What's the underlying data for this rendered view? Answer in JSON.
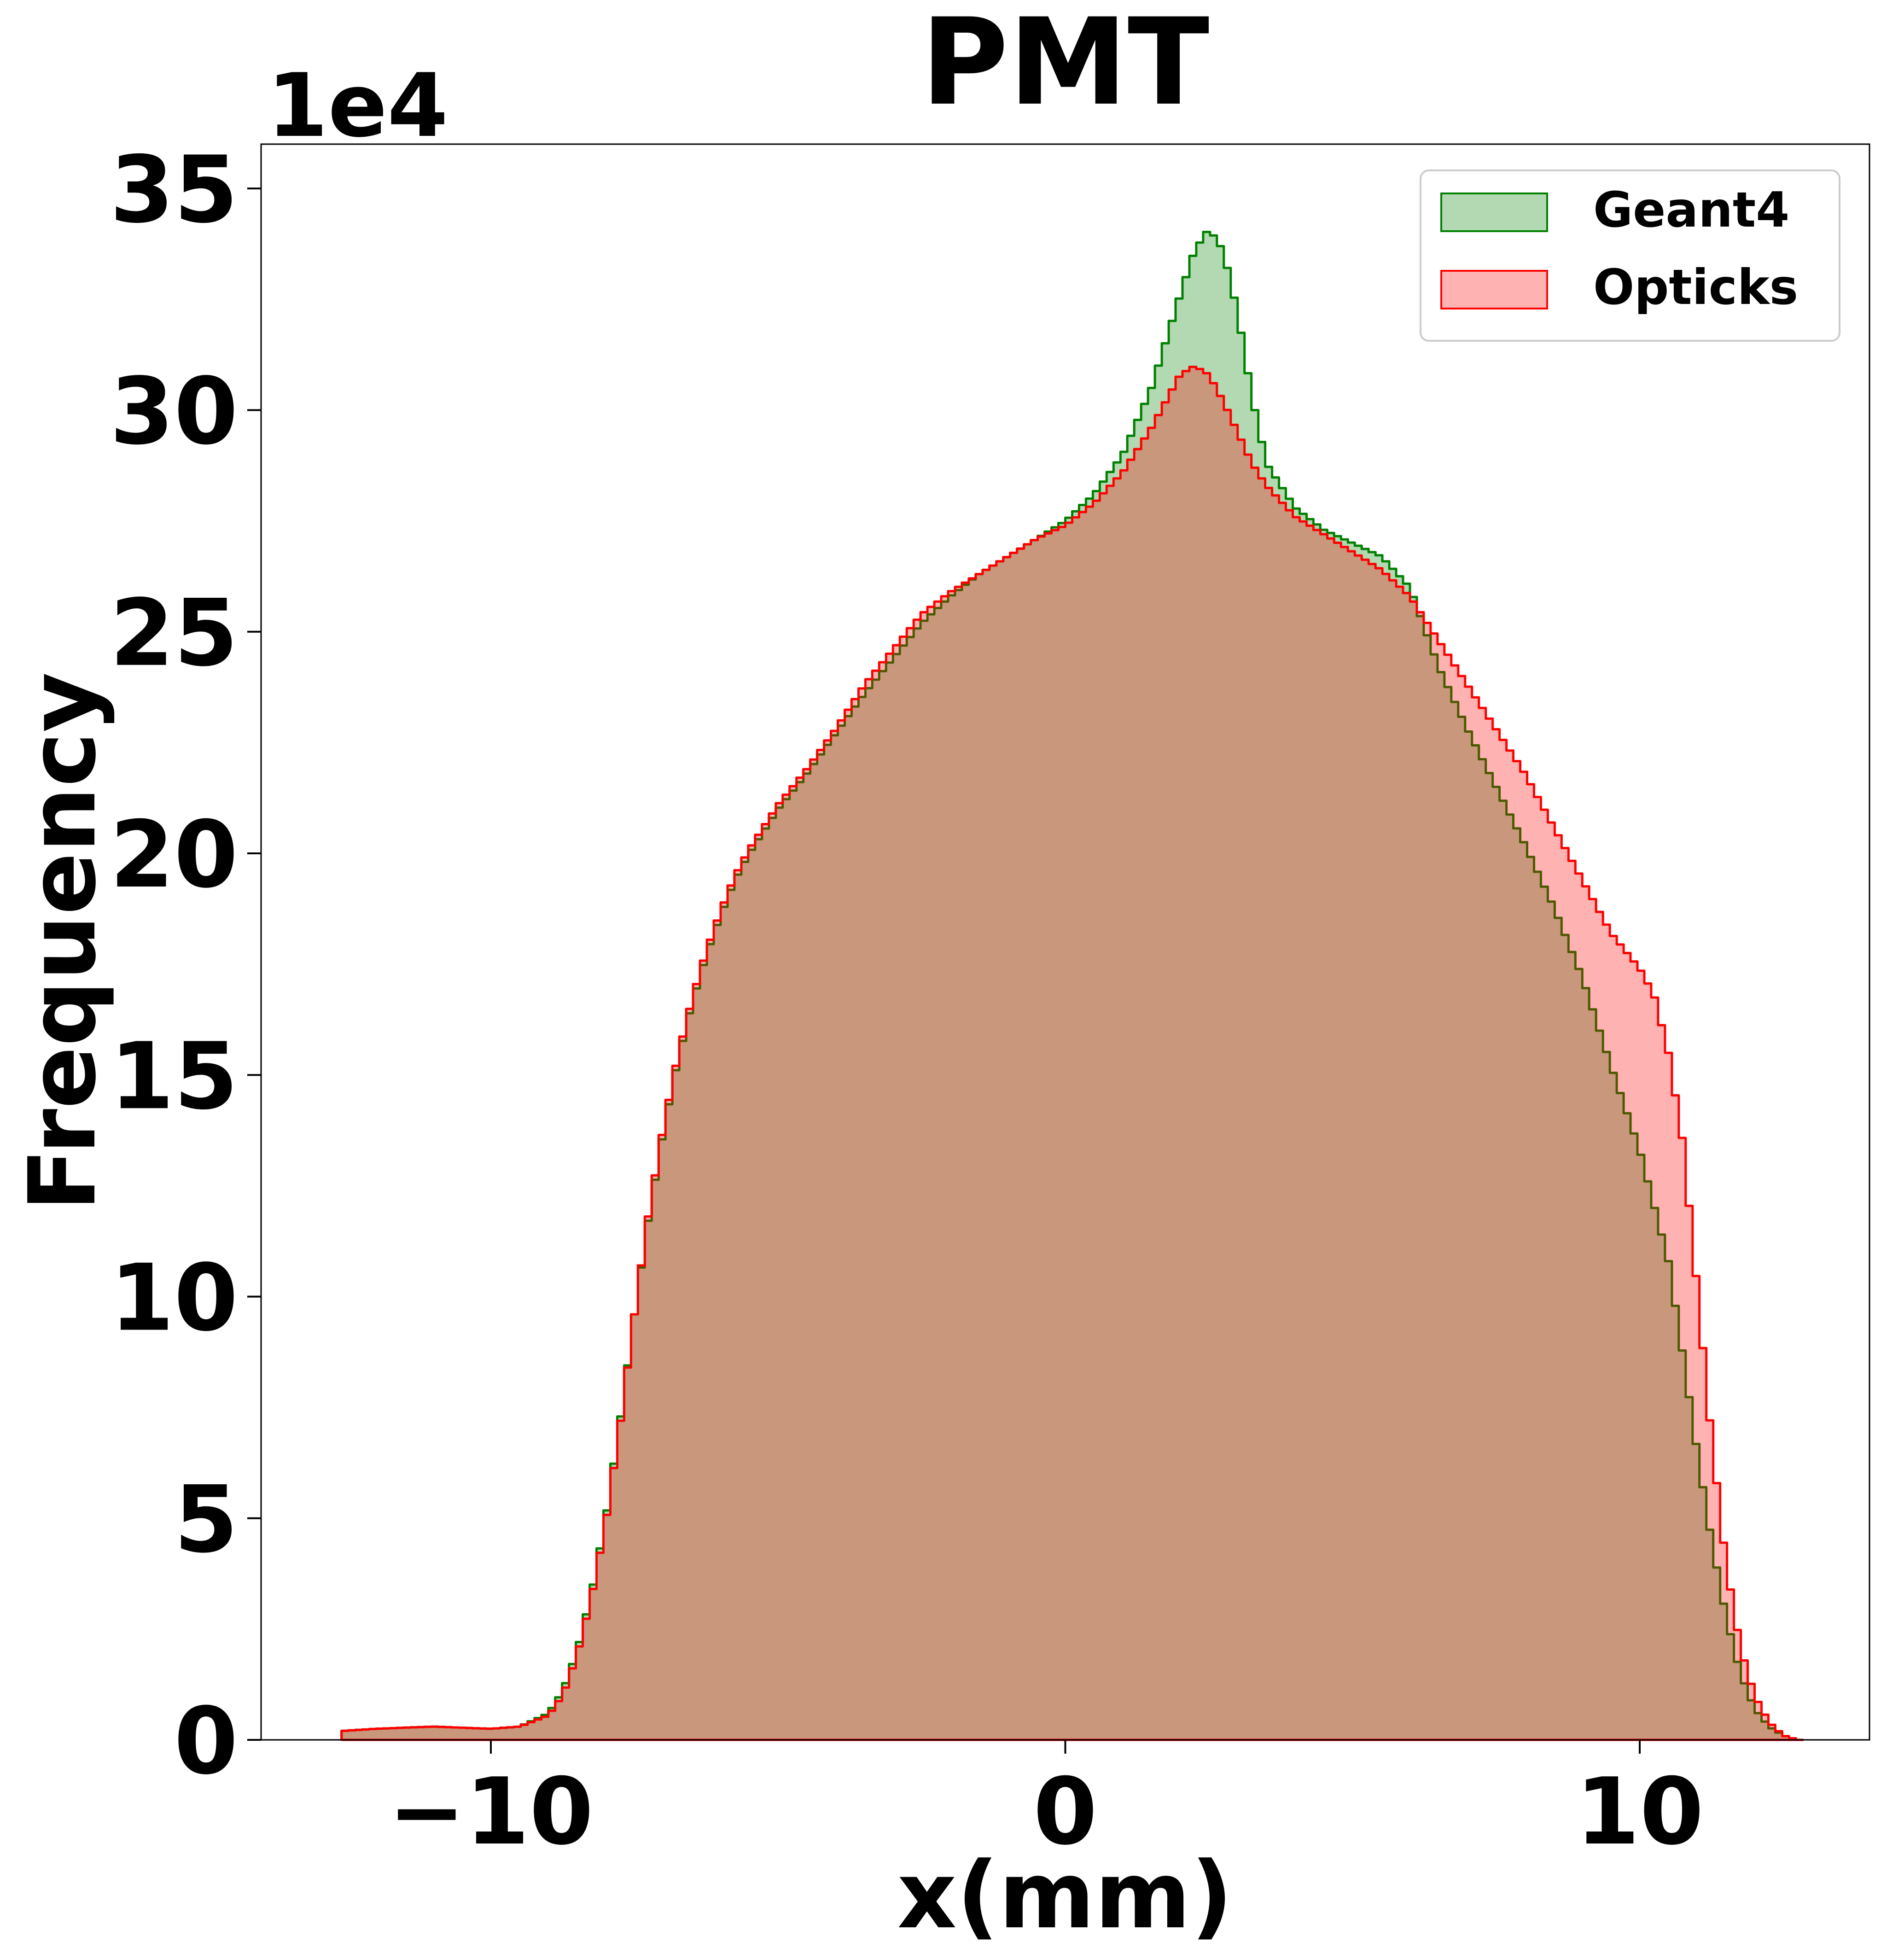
{
  "chart_data": {
    "type": "area",
    "title": "PMT",
    "xlabel": "x(mm)",
    "ylabel": "Frequency",
    "y_offset_label": "1e4",
    "xlim": [
      -14.0,
      14.0
    ],
    "ylim": [
      0,
      36
    ],
    "x_ticks": [
      -10,
      0,
      10
    ],
    "x_tick_labels": [
      "−10",
      "0",
      "10"
    ],
    "y_ticks": [
      0,
      5,
      10,
      15,
      20,
      25,
      30,
      35
    ],
    "y_tick_labels": [
      "0",
      "5",
      "10",
      "15",
      "20",
      "25",
      "30",
      "35"
    ],
    "grid": false,
    "legend_position": "top-right",
    "series": [
      {
        "name": "Geant4",
        "color": "#008000",
        "x": [
          -12.6,
          -12.0,
          -11.0,
          -10.0,
          -9.5,
          -9.0,
          -8.75,
          -8.5,
          -8.25,
          -8.0,
          -7.75,
          -7.5,
          -7.25,
          -7.0,
          -6.75,
          -6.5,
          -6.25,
          -6.0,
          -5.75,
          -5.5,
          -5.0,
          -4.5,
          -4.0,
          -3.5,
          -3.0,
          -2.5,
          -2.0,
          -1.5,
          -1.0,
          -0.5,
          0.0,
          0.5,
          1.0,
          1.5,
          2.0,
          2.25,
          2.5,
          2.75,
          3.0,
          3.25,
          3.5,
          4.0,
          4.5,
          5.0,
          5.5,
          6.0,
          6.5,
          7.0,
          7.5,
          8.0,
          8.5,
          9.0,
          9.5,
          10.0,
          10.5,
          10.75,
          11.0,
          11.25,
          11.5,
          11.75,
          12.0,
          12.25,
          12.5,
          12.75,
          12.85
        ],
        "values": [
          0.2,
          0.25,
          0.3,
          0.25,
          0.3,
          0.6,
          1.1,
          2.0,
          3.3,
          5.0,
          7.2,
          9.6,
          11.8,
          13.7,
          15.3,
          16.6,
          17.7,
          18.6,
          19.4,
          20.0,
          21.0,
          21.8,
          22.7,
          23.6,
          24.4,
          25.2,
          25.8,
          26.3,
          26.7,
          27.1,
          27.5,
          28.1,
          29.0,
          30.5,
          32.6,
          33.6,
          34.1,
          33.6,
          32.2,
          30.3,
          28.8,
          27.8,
          27.3,
          27.0,
          26.7,
          26.0,
          24.2,
          22.8,
          21.5,
          20.2,
          18.8,
          17.2,
          15.2,
          13.3,
          10.8,
          8.7,
          6.5,
          4.5,
          2.8,
          1.5,
          0.7,
          0.3,
          0.1,
          0.0,
          0.0
        ]
      },
      {
        "name": "Opticks",
        "color": "#ff0000",
        "x": [
          -12.6,
          -12.0,
          -11.0,
          -10.0,
          -9.5,
          -9.0,
          -8.75,
          -8.5,
          -8.25,
          -8.0,
          -7.75,
          -7.5,
          -7.25,
          -7.0,
          -6.75,
          -6.5,
          -6.25,
          -6.0,
          -5.75,
          -5.5,
          -5.0,
          -4.5,
          -4.0,
          -3.5,
          -3.0,
          -2.5,
          -2.0,
          -1.5,
          -1.0,
          -0.5,
          0.0,
          0.5,
          1.0,
          1.5,
          2.0,
          2.25,
          2.5,
          2.75,
          3.0,
          3.25,
          3.5,
          4.0,
          4.5,
          5.0,
          5.5,
          6.0,
          6.5,
          7.0,
          7.5,
          8.0,
          8.5,
          9.0,
          9.5,
          10.0,
          10.25,
          10.5,
          10.75,
          11.0,
          11.25,
          11.5,
          11.75,
          12.0,
          12.25,
          12.5,
          12.75,
          12.85
        ],
        "values": [
          0.2,
          0.25,
          0.3,
          0.25,
          0.3,
          0.55,
          1.0,
          1.9,
          3.2,
          4.9,
          7.1,
          9.6,
          11.9,
          13.8,
          15.4,
          16.7,
          17.8,
          18.7,
          19.5,
          20.1,
          21.1,
          21.9,
          22.8,
          23.8,
          24.6,
          25.4,
          25.9,
          26.3,
          26.7,
          27.1,
          27.4,
          27.9,
          28.6,
          29.6,
          30.8,
          31.0,
          30.8,
          30.2,
          29.5,
          28.8,
          28.3,
          27.6,
          27.2,
          26.8,
          26.4,
          25.8,
          24.8,
          23.8,
          22.8,
          21.8,
          20.6,
          19.4,
          18.2,
          17.4,
          16.8,
          15.5,
          13.5,
          10.2,
          6.8,
          4.0,
          2.1,
          1.0,
          0.4,
          0.1,
          0.0,
          0.0
        ]
      }
    ]
  }
}
